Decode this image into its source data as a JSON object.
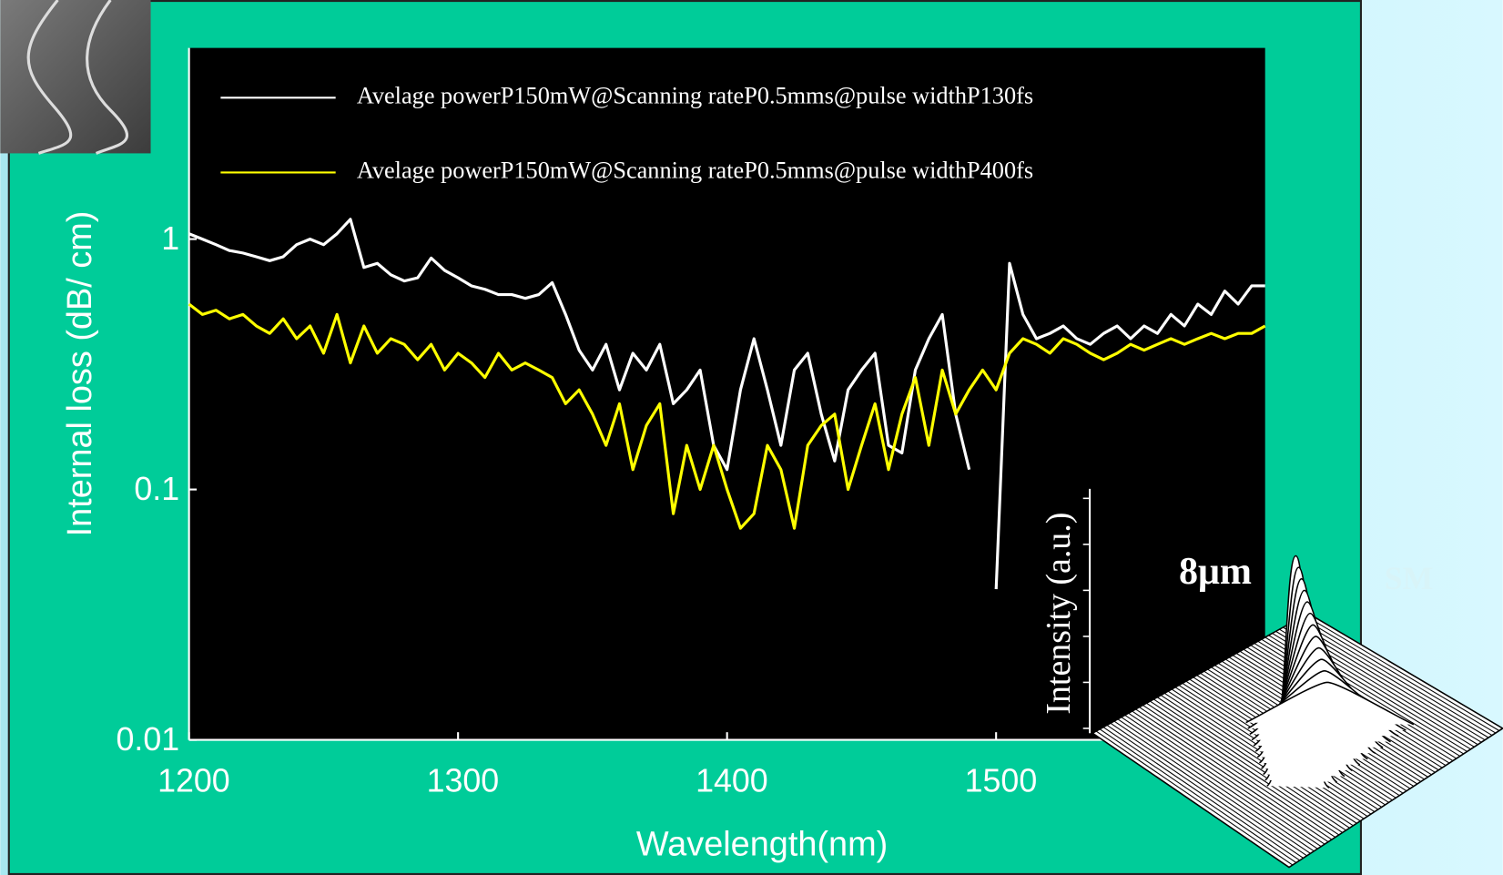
{
  "chart_data": {
    "type": "line",
    "xlabel": "Wavelength(nm)",
    "ylabel": "Internal loss (dB/ cm)",
    "xlim": [
      1200,
      1600
    ],
    "ylim": [
      0.01,
      5.8
    ],
    "xticks": [
      1200,
      1300,
      1400,
      1500
    ],
    "yticks": [
      0.01,
      0.1,
      1
    ],
    "log_y": true,
    "grid": false,
    "legend": "top-left",
    "x": [
      1200,
      1205,
      1210,
      1215,
      1220,
      1225,
      1230,
      1235,
      1240,
      1245,
      1250,
      1255,
      1260,
      1265,
      1270,
      1275,
      1280,
      1285,
      1290,
      1295,
      1300,
      1305,
      1310,
      1315,
      1320,
      1325,
      1330,
      1335,
      1340,
      1345,
      1350,
      1355,
      1360,
      1365,
      1370,
      1375,
      1380,
      1385,
      1390,
      1395,
      1400,
      1405,
      1410,
      1415,
      1420,
      1425,
      1430,
      1435,
      1440,
      1445,
      1450,
      1455,
      1460,
      1465,
      1470,
      1475,
      1480,
      1485,
      1490,
      1495,
      1500,
      1505,
      1510,
      1515,
      1520,
      1525,
      1530,
      1535,
      1540,
      1545,
      1550,
      1555,
      1560,
      1565,
      1570,
      1575,
      1580,
      1585,
      1590,
      1595,
      1600
    ],
    "series": [
      {
        "name": "Avelage powerP150mW@Scanning rateP0.5mms@pulse widthP130fs",
        "color": "#ffffff",
        "values": [
          1.05,
          1.0,
          0.95,
          0.9,
          0.88,
          0.85,
          0.82,
          0.85,
          0.95,
          1.0,
          0.95,
          1.05,
          1.2,
          0.77,
          0.8,
          0.72,
          0.68,
          0.7,
          0.84,
          0.75,
          0.7,
          0.65,
          0.63,
          0.6,
          0.6,
          0.58,
          0.6,
          0.67,
          0.5,
          0.36,
          0.3,
          0.38,
          0.25,
          0.35,
          0.3,
          0.38,
          0.22,
          0.25,
          0.3,
          0.15,
          0.12,
          0.25,
          0.4,
          0.25,
          0.15,
          0.3,
          0.35,
          0.2,
          0.13,
          0.25,
          0.3,
          0.35,
          0.15,
          0.14,
          0.3,
          0.4,
          0.5,
          0.2,
          0.12,
          null,
          0.04,
          0.8,
          0.5,
          0.4,
          0.42,
          0.45,
          0.4,
          0.38,
          0.42,
          0.45,
          0.4,
          0.45,
          0.42,
          0.5,
          0.45,
          0.55,
          0.5,
          0.62,
          0.55,
          0.65,
          0.65
        ]
      },
      {
        "name": "Avelage powerP150mW@Scanning rateP0.5mms@pulse widthP400fs",
        "color": "#ffff00",
        "values": [
          0.55,
          0.5,
          0.52,
          0.48,
          0.5,
          0.45,
          0.42,
          0.48,
          0.4,
          0.45,
          0.35,
          0.5,
          0.32,
          0.45,
          0.35,
          0.4,
          0.38,
          0.33,
          0.38,
          0.3,
          0.35,
          0.32,
          0.28,
          0.35,
          0.3,
          0.32,
          0.3,
          0.28,
          0.22,
          0.25,
          0.2,
          0.15,
          0.22,
          0.12,
          0.18,
          0.22,
          0.08,
          0.15,
          0.1,
          0.15,
          0.1,
          0.07,
          0.08,
          0.15,
          0.12,
          0.07,
          0.15,
          0.18,
          0.2,
          0.1,
          0.15,
          0.22,
          0.12,
          0.2,
          0.28,
          0.15,
          0.3,
          0.2,
          0.25,
          0.3,
          0.25,
          0.35,
          0.4,
          0.38,
          0.35,
          0.4,
          0.38,
          0.35,
          0.33,
          0.35,
          0.38,
          0.36,
          0.38,
          0.4,
          0.38,
          0.4,
          0.42,
          0.4,
          0.42,
          0.42,
          0.45
        ]
      }
    ],
    "annotations": [
      "Intensity (a.u.)",
      "8μm",
      "SM"
    ]
  }
}
